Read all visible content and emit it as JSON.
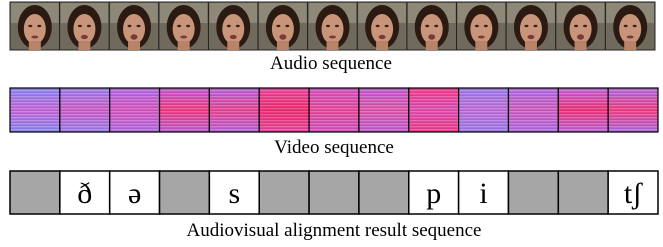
{
  "figure": {
    "audio_label": "Audio sequence",
    "video_label": "Video sequence",
    "alignment_label": "Audiovisual alignment result sequence",
    "alignment_cells": [
      null,
      "ð",
      "ə",
      null,
      "s",
      null,
      null,
      null,
      "p",
      "i",
      null,
      null,
      "tʃ"
    ]
  }
}
